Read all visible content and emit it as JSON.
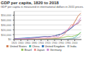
{
  "chart_data": {
    "type": "line",
    "title": "GDP per capita, 1820 to 2018",
    "subtitle": "GDP per capita is measured in international dollars in 2011 prices.",
    "series": [
      {
        "name": "United States",
        "color": "#d4845a",
        "x": [
          1820,
          1830,
          1840,
          1850,
          1860,
          1870,
          1880,
          1890,
          1900,
          1910,
          1920,
          1930,
          1940,
          1950,
          1960,
          1970,
          1980,
          1990,
          2000,
          2010,
          2018
        ],
        "values": [
          1257,
          1361,
          1519,
          1849,
          2178,
          2445,
          3184,
          3969,
          4921,
          5590,
          5552,
          6213,
          7010,
          9561,
          11328,
          15030,
          18577,
          23889,
          36334,
          48374,
          54225
        ]
      },
      {
        "name": "China",
        "color": "#5dbfb5",
        "x": [
          1820,
          1830,
          1840,
          1850,
          1860,
          1870,
          1880,
          1890,
          1900,
          1910,
          1920,
          1930,
          1940,
          1950,
          1960,
          1970,
          1980,
          1990,
          2000,
          2010,
          2018
        ],
        "values": [
          600,
          607,
          589,
          575,
          565,
          523,
          513,
          518,
          545,
          552,
          545,
          537,
          611,
          617,
          777,
          783,
          1067,
          1871,
          4029,
          9236,
          15308
        ]
      },
      {
        "name": "United Kingdom",
        "color": "#3a7abf",
        "x": [
          1820,
          1830,
          1840,
          1850,
          1860,
          1870,
          1880,
          1890,
          1900,
          1910,
          1920,
          1930,
          1940,
          1950,
          1960,
          1970,
          1980,
          1990,
          2000,
          2010,
          2018
        ],
        "values": [
          2074,
          2212,
          2549,
          2997,
          3490,
          3868,
          4422,
          4879,
          5585,
          6051,
          5765,
          6527,
          7724,
          9447,
          11387,
          13976,
          18632,
          23534,
          29541,
          33657,
          39753
        ]
      },
      {
        "name": "India",
        "color": "#b0bec5",
        "x": [
          1820,
          1830,
          1840,
          1850,
          1860,
          1870,
          1880,
          1890,
          1900,
          1910,
          1920,
          1930,
          1940,
          1950,
          1960,
          1970,
          1980,
          1990,
          2000,
          2010,
          2018
        ],
        "values": [
          543,
          534,
          527,
          531,
          520,
          533,
          556,
          577,
          625,
          657,
          617,
          632,
          675,
          619,
          753,
          878,
          1053,
          1518,
          2207,
          3773,
          6427
        ]
      },
      {
        "name": "Brazil",
        "color": "#9ccc65",
        "x": [
          1820,
          1840,
          1860,
          1880,
          1900,
          1920,
          1940,
          1960,
          1980,
          1990,
          2000,
          2010,
          2018
        ],
        "values": [
          853,
          847,
          897,
          1048,
          1048,
          1399,
          1863,
          3171,
          6880,
          5906,
          7637,
          10597,
          14103
        ]
      },
      {
        "name": "Japan",
        "color": "#ef9a9a",
        "x": [
          1820,
          1830,
          1840,
          1850,
          1860,
          1870,
          1880,
          1890,
          1900,
          1910,
          1920,
          1930,
          1940,
          1950,
          1960,
          1970,
          1980,
          1990,
          2000,
          2010,
          2018
        ],
        "values": [
          669,
          697,
          700,
          681,
          675,
          737,
          882,
          1163,
          1543,
          1921,
          2443,
          2709,
          3447,
          2964,
          5545,
          11434,
          21069,
          30439,
          30601,
          32432,
          40247
        ]
      },
      {
        "name": "Germany",
        "color": "#ce93d8",
        "x": [
          1820,
          1830,
          1840,
          1850,
          1860,
          1870,
          1880,
          1890,
          1900,
          1910,
          1920,
          1930,
          1940,
          1950,
          1960,
          1970,
          1980,
          1990,
          2000,
          2010,
          2018
        ],
        "values": [
          1542,
          1656,
          1804,
          2033,
          2302,
          2616,
          3080,
          3637,
          4458,
          5178,
          4712,
          6114,
          7718,
          5603,
          11810,
          16447,
          20984,
          25391,
          30200,
          36317,
          45229
        ]
      }
    ],
    "xlim": [
      1820,
      2020
    ],
    "xticks": [
      1820,
      1840,
      1860,
      1880,
      1900,
      1920,
      1940,
      1960,
      1980,
      2000
    ],
    "ylim": [
      0,
      58000
    ],
    "yticks": [
      {
        "value": 0,
        "label": "$0"
      },
      {
        "value": 10000,
        "label": "$10,000"
      },
      {
        "value": 20000,
        "label": "$20,000"
      },
      {
        "value": 30000,
        "label": "$30,000"
      },
      {
        "value": 40000,
        "label": "$40,000"
      },
      {
        "value": 50000,
        "label": "$50,000"
      }
    ],
    "grid": "y",
    "legend": "bottom"
  }
}
